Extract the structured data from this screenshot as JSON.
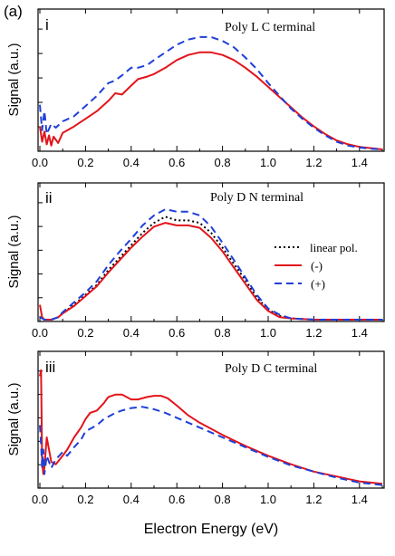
{
  "figure_label": "(a)",
  "x_axis_label": "Electron Energy (eV)",
  "colors": {
    "minus": "#e3141b",
    "plus": "#1f3fd8",
    "linear": "#000000"
  },
  "legend": {
    "linear": "linear pol.",
    "minus": "(-)",
    "plus": "(+)"
  },
  "chart_data": [
    {
      "type": "line",
      "panel": "i",
      "title": "Poly L  C terminal",
      "xlabel": "",
      "ylabel": "Signal (a.u.)",
      "xlim": [
        0,
        1.5
      ],
      "ylim": [
        0,
        1
      ],
      "xticks": [
        "0.0",
        "0.2",
        "0.4",
        "0.6",
        "0.8",
        "1.0",
        "1.2",
        "1.4"
      ],
      "series": [
        {
          "name": "(-)",
          "color": "#e3141b",
          "style": "solid",
          "x": [
            0.0,
            0.01,
            0.02,
            0.03,
            0.04,
            0.05,
            0.06,
            0.08,
            0.1,
            0.15,
            0.2,
            0.25,
            0.3,
            0.33,
            0.36,
            0.4,
            0.43,
            0.47,
            0.5,
            0.55,
            0.6,
            0.65,
            0.7,
            0.75,
            0.8,
            0.85,
            0.9,
            0.95,
            1.0,
            1.05,
            1.1,
            1.15,
            1.2,
            1.25,
            1.3,
            1.35,
            1.4,
            1.45,
            1.5
          ],
          "y": [
            0.18,
            0.06,
            0.14,
            0.04,
            0.11,
            0.03,
            0.1,
            0.05,
            0.13,
            0.18,
            0.24,
            0.3,
            0.38,
            0.44,
            0.43,
            0.5,
            0.55,
            0.57,
            0.59,
            0.64,
            0.7,
            0.74,
            0.76,
            0.76,
            0.74,
            0.7,
            0.64,
            0.57,
            0.49,
            0.41,
            0.33,
            0.25,
            0.18,
            0.12,
            0.07,
            0.04,
            0.02,
            0.01,
            0.0
          ]
        },
        {
          "name": "(+)",
          "color": "#1f3fd8",
          "style": "dashed",
          "x": [
            0.0,
            0.01,
            0.02,
            0.03,
            0.05,
            0.07,
            0.1,
            0.15,
            0.2,
            0.25,
            0.3,
            0.33,
            0.36,
            0.4,
            0.43,
            0.47,
            0.5,
            0.55,
            0.6,
            0.65,
            0.7,
            0.75,
            0.8,
            0.85,
            0.9,
            0.95,
            1.0,
            1.05,
            1.1,
            1.15,
            1.2,
            1.25,
            1.3,
            1.35,
            1.4,
            1.45,
            1.5
          ],
          "y": [
            0.35,
            0.15,
            0.3,
            0.12,
            0.2,
            0.17,
            0.22,
            0.26,
            0.34,
            0.42,
            0.52,
            0.54,
            0.58,
            0.64,
            0.64,
            0.66,
            0.7,
            0.76,
            0.82,
            0.86,
            0.88,
            0.88,
            0.85,
            0.8,
            0.72,
            0.63,
            0.52,
            0.42,
            0.32,
            0.24,
            0.17,
            0.11,
            0.06,
            0.03,
            0.015,
            0.005,
            0.0
          ]
        }
      ]
    },
    {
      "type": "line",
      "panel": "ii",
      "title": "Poly D  N terminal",
      "xlabel": "",
      "ylabel": "Signal (a.u.)",
      "xlim": [
        0,
        1.5
      ],
      "ylim": [
        0,
        1
      ],
      "xticks": [
        "0.0",
        "0.2",
        "0.4",
        "0.6",
        "0.8",
        "1.0",
        "1.2",
        "1.4"
      ],
      "series": [
        {
          "name": "linear pol.",
          "color": "#000000",
          "style": "dotted",
          "x": [
            0.0,
            0.02,
            0.05,
            0.08,
            0.1,
            0.15,
            0.2,
            0.25,
            0.3,
            0.35,
            0.4,
            0.45,
            0.5,
            0.55,
            0.6,
            0.65,
            0.7,
            0.75,
            0.8,
            0.85,
            0.9,
            0.95,
            1.0,
            1.05,
            1.1,
            1.2,
            1.3,
            1.5
          ],
          "y": [
            0.02,
            0.0,
            0.0,
            0.02,
            0.05,
            0.12,
            0.2,
            0.28,
            0.4,
            0.5,
            0.6,
            0.7,
            0.78,
            0.83,
            0.8,
            0.8,
            0.78,
            0.7,
            0.58,
            0.45,
            0.32,
            0.18,
            0.08,
            0.03,
            0.01,
            0.0,
            0.0,
            0.0
          ]
        },
        {
          "name": "(-)",
          "color": "#e3141b",
          "style": "solid",
          "x": [
            0.0,
            0.01,
            0.02,
            0.05,
            0.08,
            0.1,
            0.15,
            0.2,
            0.25,
            0.3,
            0.35,
            0.4,
            0.45,
            0.5,
            0.55,
            0.6,
            0.65,
            0.7,
            0.75,
            0.8,
            0.85,
            0.9,
            0.95,
            1.0,
            1.05,
            1.1,
            1.2,
            1.3,
            1.5
          ],
          "y": [
            0.12,
            0.02,
            0.0,
            0.0,
            0.02,
            0.05,
            0.11,
            0.19,
            0.27,
            0.38,
            0.48,
            0.58,
            0.67,
            0.75,
            0.78,
            0.76,
            0.76,
            0.74,
            0.66,
            0.55,
            0.42,
            0.29,
            0.16,
            0.07,
            0.02,
            0.01,
            0.0,
            0.0,
            0.0
          ]
        },
        {
          "name": "(+)",
          "color": "#1f3fd8",
          "style": "dashed",
          "x": [
            0.0,
            0.02,
            0.05,
            0.08,
            0.1,
            0.15,
            0.2,
            0.25,
            0.3,
            0.35,
            0.4,
            0.45,
            0.5,
            0.55,
            0.6,
            0.65,
            0.7,
            0.75,
            0.8,
            0.85,
            0.9,
            0.95,
            1.0,
            1.05,
            1.1,
            1.2,
            1.3,
            1.5
          ],
          "y": [
            0.02,
            0.0,
            0.0,
            0.02,
            0.06,
            0.14,
            0.22,
            0.31,
            0.44,
            0.55,
            0.65,
            0.76,
            0.84,
            0.89,
            0.87,
            0.87,
            0.84,
            0.75,
            0.62,
            0.48,
            0.34,
            0.2,
            0.09,
            0.04,
            0.01,
            0.0,
            0.0,
            0.0
          ]
        }
      ]
    },
    {
      "type": "line",
      "panel": "iii",
      "title": "Poly D  C terminal",
      "xlabel": "Electron Energy (eV)",
      "ylabel": "Signal (a.u.)",
      "xlim": [
        0,
        1.5
      ],
      "ylim": [
        0,
        1
      ],
      "xticks": [
        "0.0",
        "0.2",
        "0.4",
        "0.6",
        "0.8",
        "1.0",
        "1.2",
        "1.4"
      ],
      "series": [
        {
          "name": "(-)",
          "color": "#e3141b",
          "style": "solid",
          "x": [
            0.0,
            0.005,
            0.01,
            0.015,
            0.02,
            0.03,
            0.05,
            0.07,
            0.1,
            0.12,
            0.15,
            0.18,
            0.2,
            0.22,
            0.25,
            0.28,
            0.3,
            0.33,
            0.36,
            0.4,
            0.43,
            0.47,
            0.5,
            0.53,
            0.56,
            0.6,
            0.65,
            0.7,
            0.8,
            0.9,
            1.0,
            1.1,
            1.2,
            1.3,
            1.4,
            1.5
          ],
          "y": [
            0.9,
            0.95,
            0.2,
            0.1,
            0.15,
            0.4,
            0.2,
            0.18,
            0.25,
            0.3,
            0.4,
            0.48,
            0.55,
            0.6,
            0.62,
            0.68,
            0.73,
            0.75,
            0.75,
            0.71,
            0.71,
            0.73,
            0.74,
            0.74,
            0.72,
            0.66,
            0.58,
            0.52,
            0.42,
            0.33,
            0.25,
            0.18,
            0.12,
            0.08,
            0.04,
            0.02
          ]
        },
        {
          "name": "(+)",
          "color": "#1f3fd8",
          "style": "dashed",
          "x": [
            0.0,
            0.005,
            0.01,
            0.015,
            0.02,
            0.03,
            0.05,
            0.07,
            0.1,
            0.12,
            0.15,
            0.18,
            0.2,
            0.22,
            0.25,
            0.28,
            0.3,
            0.33,
            0.36,
            0.4,
            0.45,
            0.5,
            0.55,
            0.6,
            0.7,
            0.8,
            0.9,
            1.0,
            1.1,
            1.2,
            1.3,
            1.4,
            1.5
          ],
          "y": [
            0.5,
            0.35,
            0.15,
            0.3,
            0.1,
            0.25,
            0.15,
            0.22,
            0.28,
            0.25,
            0.32,
            0.38,
            0.45,
            0.47,
            0.5,
            0.55,
            0.57,
            0.6,
            0.62,
            0.64,
            0.65,
            0.63,
            0.6,
            0.56,
            0.48,
            0.4,
            0.32,
            0.24,
            0.17,
            0.12,
            0.07,
            0.03,
            0.01
          ]
        }
      ]
    }
  ]
}
